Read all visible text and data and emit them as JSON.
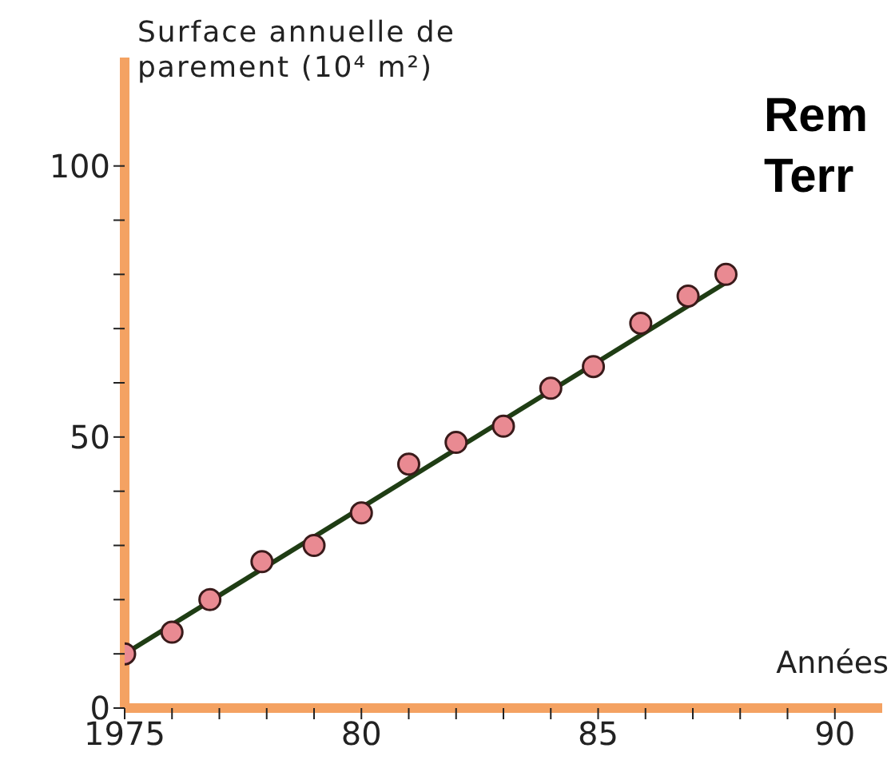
{
  "chart_data": {
    "type": "scatter",
    "xlabel": "Années",
    "ylabel": "Surface annuelle de parement (10⁴ m²)",
    "annotations": [
      "Rem",
      "Terr"
    ],
    "xlim": [
      1975,
      1991
    ],
    "ylim": [
      0,
      120
    ],
    "xticks": [
      {
        "value": 1975,
        "label": "1975"
      },
      {
        "value": 1976,
        "label": null
      },
      {
        "value": 1977,
        "label": null
      },
      {
        "value": 1978,
        "label": null
      },
      {
        "value": 1979,
        "label": null
      },
      {
        "value": 1980,
        "label": "80"
      },
      {
        "value": 1981,
        "label": null
      },
      {
        "value": 1982,
        "label": null
      },
      {
        "value": 1983,
        "label": null
      },
      {
        "value": 1984,
        "label": null
      },
      {
        "value": 1985,
        "label": "85"
      },
      {
        "value": 1986,
        "label": null
      },
      {
        "value": 1987,
        "label": null
      },
      {
        "value": 1988,
        "label": null
      },
      {
        "value": 1989,
        "label": null
      },
      {
        "value": 1990,
        "label": "90"
      }
    ],
    "yticks": [
      0,
      {
        "value": 10,
        "label": null
      },
      {
        "value": 20,
        "label": null
      },
      {
        "value": 30,
        "label": null
      },
      {
        "value": 40,
        "label": null
      },
      50,
      {
        "value": 60,
        "label": null
      },
      {
        "value": 70,
        "label": null
      },
      {
        "value": 80,
        "label": null
      },
      {
        "value": 90,
        "label": null
      },
      100
    ],
    "marker": "circle",
    "series": [
      {
        "color": "#e98a92",
        "x": [
          1975,
          1976,
          1976.8,
          1977.9,
          1979,
          1980,
          1981,
          1982,
          1983,
          1984,
          1984.9,
          1985.9,
          1986.9,
          1987.7
        ],
        "values": [
          10,
          14,
          20,
          27,
          30,
          36,
          45,
          49,
          52,
          59,
          63,
          71,
          76,
          80
        ]
      },
      {
        "type": "line",
        "marker": "none",
        "color": "#1f3d14",
        "x": [
          1975,
          1987.7
        ],
        "values": [
          10,
          78.5
        ]
      }
    ]
  }
}
